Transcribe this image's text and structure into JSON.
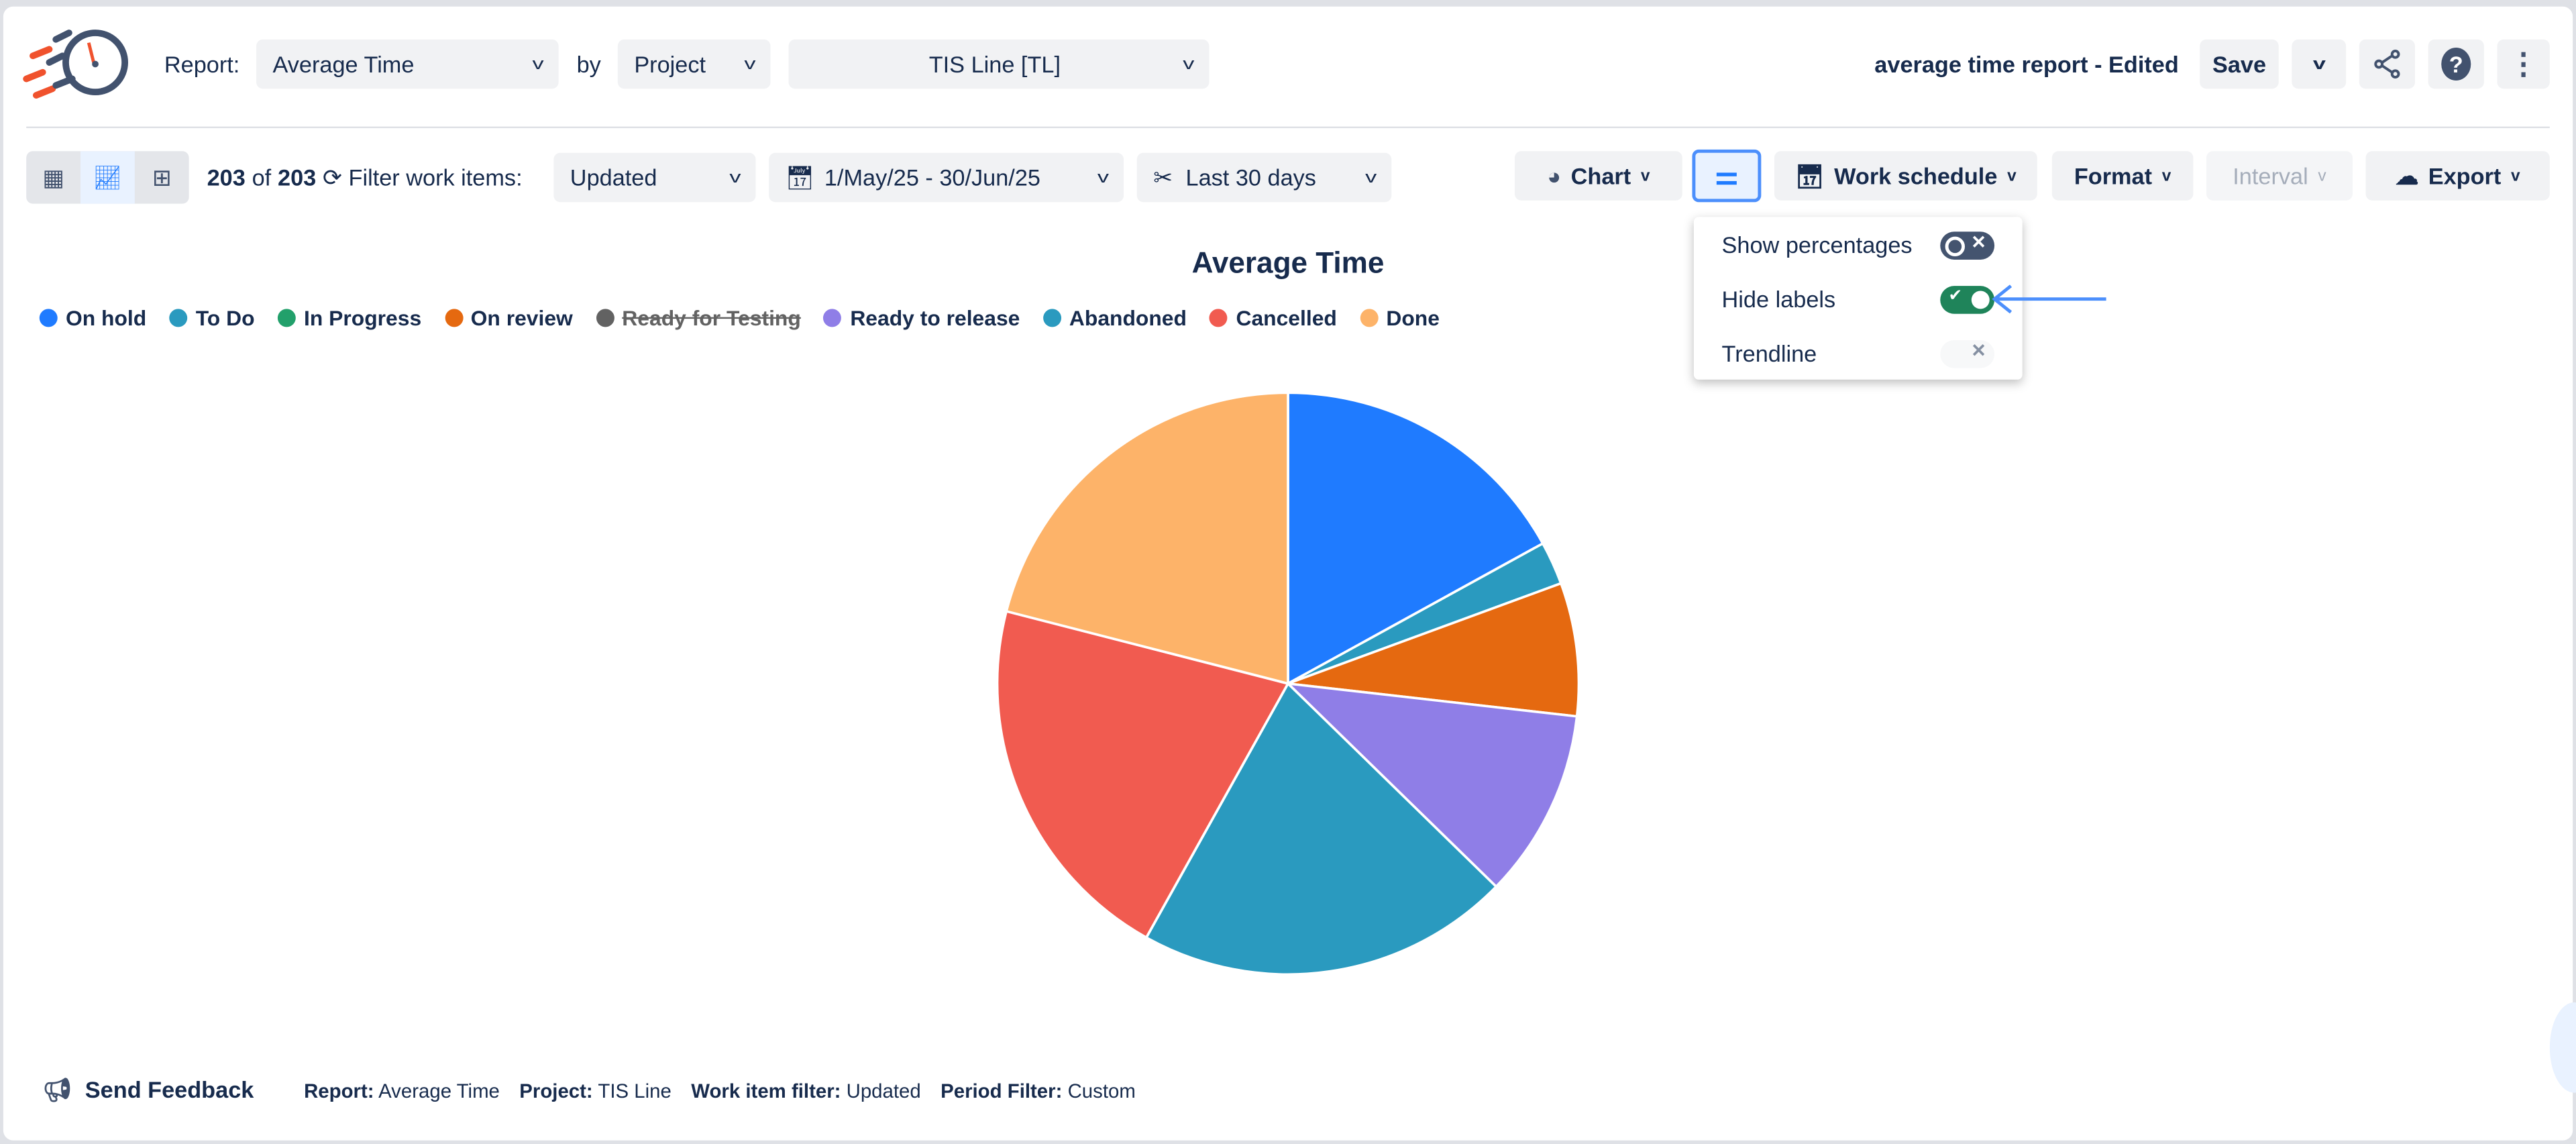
{
  "header": {
    "report_label": "Report:",
    "report_value": "Average Time",
    "by_label": "by",
    "group_value": "Project",
    "project_value": "TIS Line [TL]",
    "report_name": "average time report - Edited",
    "save_label": "Save"
  },
  "toolbar": {
    "count": "203",
    "of": "of",
    "total": "203",
    "filter_label": "Filter work items:",
    "filter_value": "Updated",
    "date_range": "1/May/25 - 30/Jun/25",
    "period": "Last 30 days",
    "chart_label": "Chart",
    "work_schedule": "Work schedule",
    "format": "Format",
    "interval": "Interval",
    "export": "Export"
  },
  "popup": {
    "items": [
      {
        "label": "Show percentages",
        "on": false
      },
      {
        "label": "Hide labels",
        "on": true
      },
      {
        "label": "Trendline",
        "on": false,
        "disabled": true
      }
    ]
  },
  "chart_data": {
    "type": "pie",
    "title": "Average Time",
    "legend_position": "top-left",
    "legend": [
      {
        "name": "On hold",
        "color": "#1f7bff"
      },
      {
        "name": "To Do",
        "color": "#2a9abf"
      },
      {
        "name": "In Progress",
        "color": "#22a06b"
      },
      {
        "name": "On review",
        "color": "#e56910"
      },
      {
        "name": "Ready for Testing",
        "color": "#626262",
        "hidden": true
      },
      {
        "name": "Ready to release",
        "color": "#8f7ee7"
      },
      {
        "name": "Abandoned",
        "color": "#2a9abf"
      },
      {
        "name": "Cancelled",
        "color": "#f15b50"
      },
      {
        "name": "Done",
        "color": "#fdb369"
      }
    ],
    "slices": [
      {
        "name": "On hold",
        "share_pct": 17.0,
        "color": "#1f7bff"
      },
      {
        "name": "To Do",
        "share_pct": 2.4,
        "color": "#2a9abf"
      },
      {
        "name": "On review",
        "share_pct": 7.4,
        "color": "#e56910"
      },
      {
        "name": "Ready to release",
        "share_pct": 10.5,
        "color": "#8f7ee7"
      },
      {
        "name": "Abandoned",
        "share_pct": 20.8,
        "color": "#2a9abf"
      },
      {
        "name": "Cancelled",
        "share_pct": 20.9,
        "color": "#f15b50"
      },
      {
        "name": "Done",
        "share_pct": 21.0,
        "color": "#fdb369"
      }
    ]
  },
  "footer": {
    "feedback": "Send Feedback",
    "items": [
      {
        "k": "Report:",
        "v": "Average Time"
      },
      {
        "k": "Project:",
        "v": "TIS Line"
      },
      {
        "k": "Work item filter:",
        "v": "Updated"
      },
      {
        "k": "Period Filter:",
        "v": "Custom"
      }
    ]
  }
}
